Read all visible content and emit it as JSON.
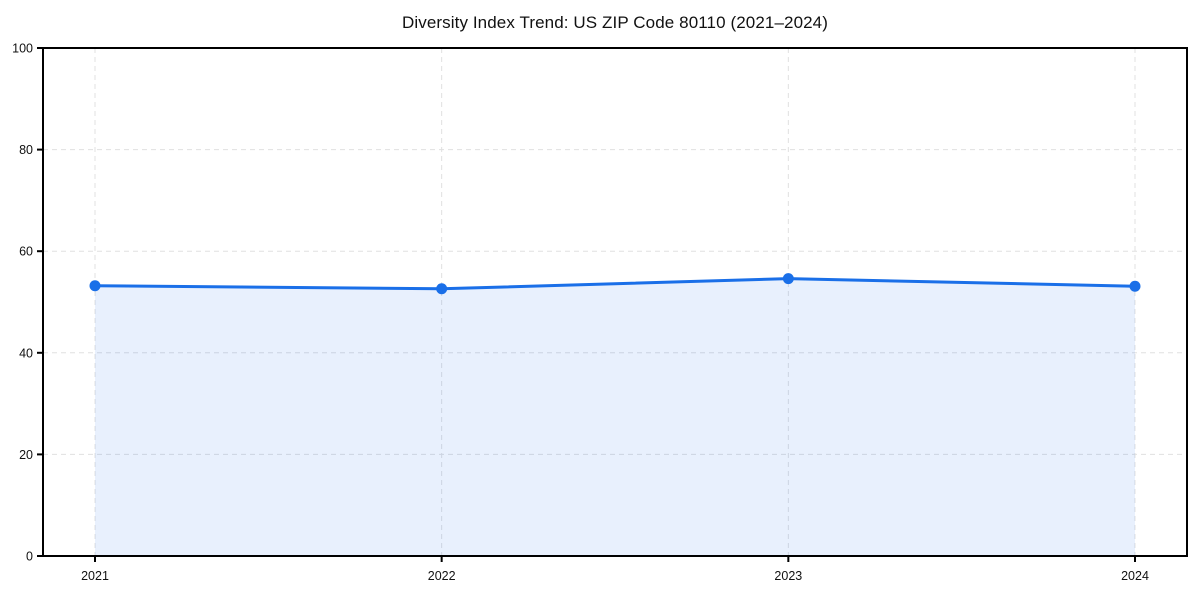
{
  "chart_data": {
    "type": "area",
    "title": "Diversity Index Trend: US ZIP Code 80110 (2021–2024)",
    "x": [
      2021,
      2022,
      2023,
      2024
    ],
    "xtick_labels": [
      "2021",
      "2022",
      "2023",
      "2024"
    ],
    "series": [
      {
        "name": "Diversity Index",
        "values": [
          53.2,
          52.6,
          54.6,
          53.1
        ]
      }
    ],
    "xlabel": "",
    "ylabel": "",
    "ylim": [
      0,
      100
    ],
    "yticks": [
      0,
      20,
      40,
      60,
      80,
      100
    ],
    "grid": true,
    "grid_style": "dashed",
    "legend": false,
    "colors": {
      "line": "#1a6fe8",
      "marker": "#1a6fe8",
      "fill": "rgba(26, 111, 232, 0.10)",
      "grid": "#e0e0e0",
      "frame": "#000000",
      "text": "#111111",
      "background": "#ffffff"
    }
  }
}
